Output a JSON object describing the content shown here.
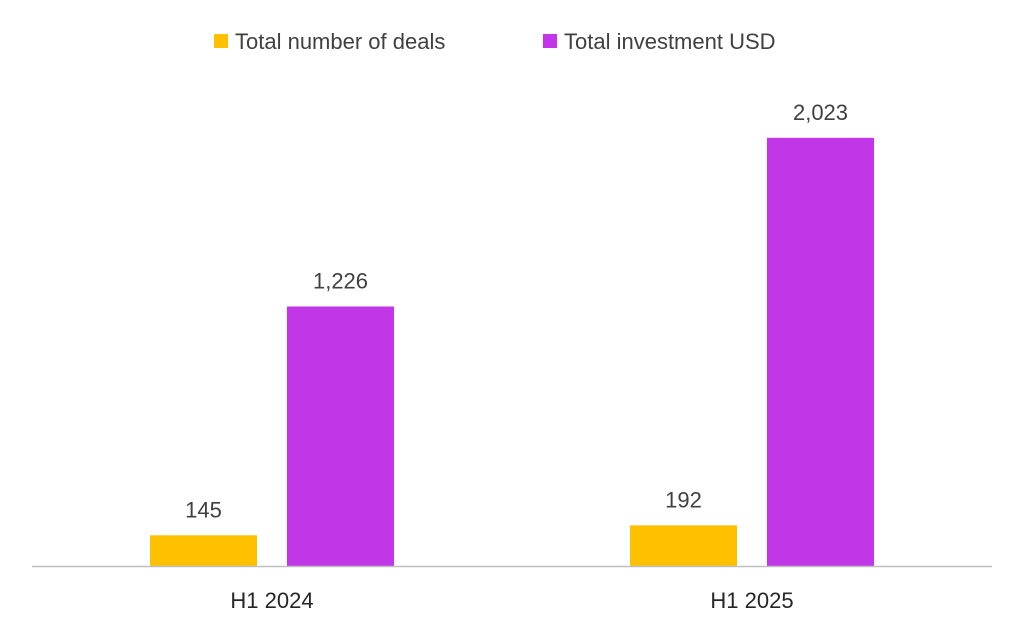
{
  "chart_data": {
    "type": "bar",
    "categories": [
      "H1 2024",
      "H1 2025"
    ],
    "series": [
      {
        "name": "Total number of deals",
        "values": [
          145,
          192
        ],
        "labels": [
          "145",
          "192"
        ],
        "color": "#FFC000"
      },
      {
        "name": "Total investment USD",
        "values": [
          1226,
          2023
        ],
        "labels": [
          "1,226",
          "2,023"
        ],
        "color": "#C136E6"
      }
    ],
    "title": "",
    "xlabel": "",
    "ylabel": "",
    "ylim": [
      0,
      2400
    ],
    "grid": false,
    "legend_position": "top-center",
    "axis_line_color": "#BFBFBF",
    "text_color": "#404040"
  }
}
